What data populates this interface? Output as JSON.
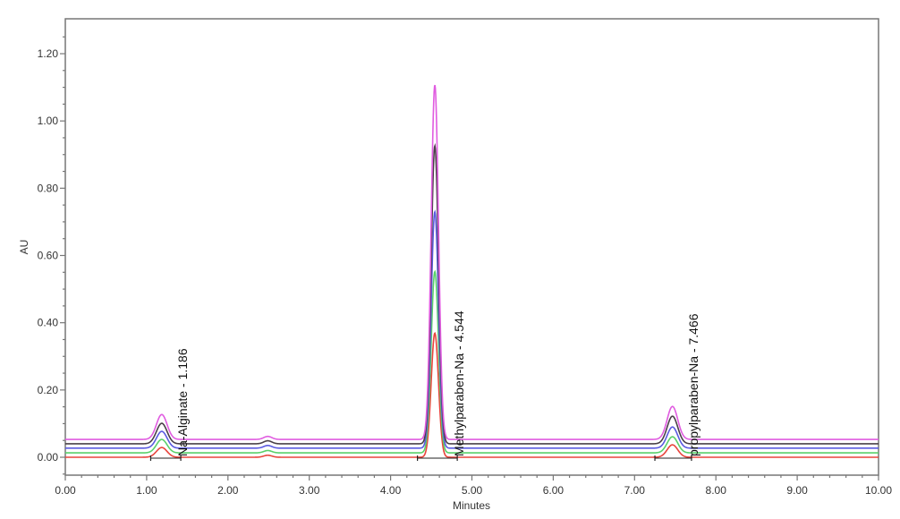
{
  "chart_data": {
    "type": "line",
    "xlabel": "Minutes",
    "ylabel": "AU",
    "xlim": [
      0,
      10
    ],
    "ylim": [
      -0.05,
      1.3
    ],
    "xticks": [
      "0.00",
      "1.00",
      "2.00",
      "3.00",
      "4.00",
      "5.00",
      "6.00",
      "7.00",
      "8.00",
      "9.00",
      "10.00"
    ],
    "yticks": [
      "0.00",
      "0.20",
      "0.40",
      "0.60",
      "0.80",
      "1.00",
      "1.20"
    ],
    "grid": false,
    "series": [
      {
        "color": "#e8443c",
        "baseline": 0.0,
        "peaks": [
          {
            "rt": 1.186,
            "apex": 0.029
          },
          {
            "rt": 2.49,
            "apex": 0.006
          },
          {
            "rt": 4.544,
            "apex": 0.369
          },
          {
            "rt": 7.466,
            "apex": 0.037
          }
        ]
      },
      {
        "color": "#5ad06a",
        "baseline": 0.013,
        "peaks": [
          {
            "rt": 1.186,
            "apex": 0.053
          },
          {
            "rt": 2.49,
            "apex": 0.02
          },
          {
            "rt": 4.544,
            "apex": 0.552
          },
          {
            "rt": 7.466,
            "apex": 0.061
          }
        ]
      },
      {
        "color": "#5a5ae0",
        "baseline": 0.027,
        "peaks": [
          {
            "rt": 1.186,
            "apex": 0.077
          },
          {
            "rt": 2.49,
            "apex": 0.035
          },
          {
            "rt": 4.544,
            "apex": 0.73
          },
          {
            "rt": 7.466,
            "apex": 0.09
          }
        ]
      },
      {
        "color": "#4a4048",
        "baseline": 0.04,
        "peaks": [
          {
            "rt": 1.186,
            "apex": 0.101
          },
          {
            "rt": 2.49,
            "apex": 0.049
          },
          {
            "rt": 4.544,
            "apex": 0.926
          },
          {
            "rt": 7.466,
            "apex": 0.122
          }
        ]
      },
      {
        "color": "#e05ce0",
        "baseline": 0.053,
        "peaks": [
          {
            "rt": 1.186,
            "apex": 0.127
          },
          {
            "rt": 2.49,
            "apex": 0.062
          },
          {
            "rt": 4.544,
            "apex": 1.107
          },
          {
            "rt": 7.466,
            "apex": 0.151
          }
        ]
      }
    ],
    "annotations": [
      {
        "label": "Na-Alginate - 1.186",
        "rt": 1.186,
        "integration": [
          1.05,
          1.42
        ]
      },
      {
        "label": "Methylparaben-Na - 4.544",
        "rt": 4.544,
        "integration": [
          4.33,
          4.82
        ]
      },
      {
        "label": "propylparaben-Na - 7.466",
        "rt": 7.466,
        "integration": [
          7.25,
          7.7
        ]
      }
    ]
  }
}
